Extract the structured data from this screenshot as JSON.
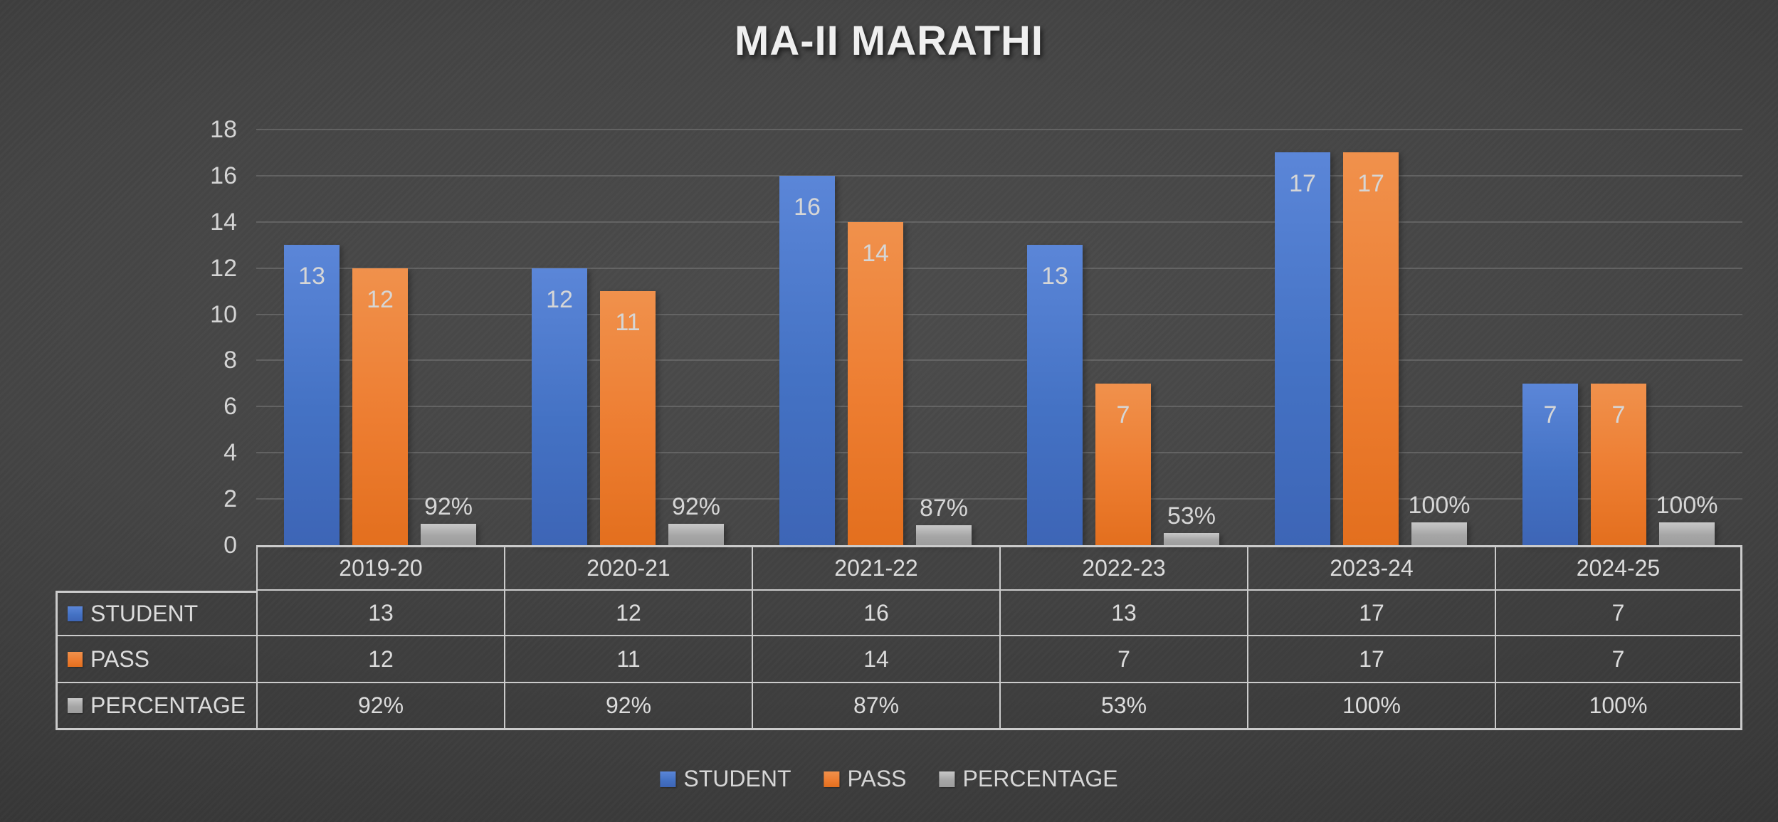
{
  "chart_data": {
    "type": "bar",
    "title": "MA-II MARATHI",
    "categories": [
      "2019-20",
      "2020-21",
      "2021-22",
      "2022-23",
      "2023-24",
      "2024-25"
    ],
    "series": [
      {
        "name": "STUDENT",
        "color": "#4472C4",
        "color_light": "#5b86d8",
        "color_dark": "#3d65b6",
        "values": [
          13,
          12,
          16,
          13,
          17,
          7
        ],
        "labels": [
          "13",
          "12",
          "16",
          "13",
          "17",
          "7"
        ],
        "label_placement": "inside-end"
      },
      {
        "name": "PASS",
        "color": "#ED7D31",
        "color_light": "#f0914c",
        "color_dark": "#e36f1e",
        "values": [
          12,
          11,
          14,
          7,
          17,
          7
        ],
        "labels": [
          "12",
          "11",
          "14",
          "7",
          "17",
          "7"
        ],
        "label_placement": "inside-end"
      },
      {
        "name": "PERCENTAGE",
        "color": "#A6A6A6",
        "color_light": "#c8c8c8",
        "color_dark": "#9d9d9d",
        "values": [
          0.92,
          0.92,
          0.87,
          0.53,
          1.0,
          1.0
        ],
        "labels": [
          "92%",
          "92%",
          "87%",
          "53%",
          "100%",
          "100%"
        ],
        "label_placement": "outside-end"
      }
    ],
    "value_axis": {
      "min": 0,
      "max": 18,
      "step": 2,
      "ticks": [
        "0",
        "2",
        "4",
        "6",
        "8",
        "10",
        "12",
        "14",
        "16",
        "18"
      ]
    },
    "gridlines": "major-horizontal",
    "legend_position": "bottom",
    "data_table_shown": true
  }
}
